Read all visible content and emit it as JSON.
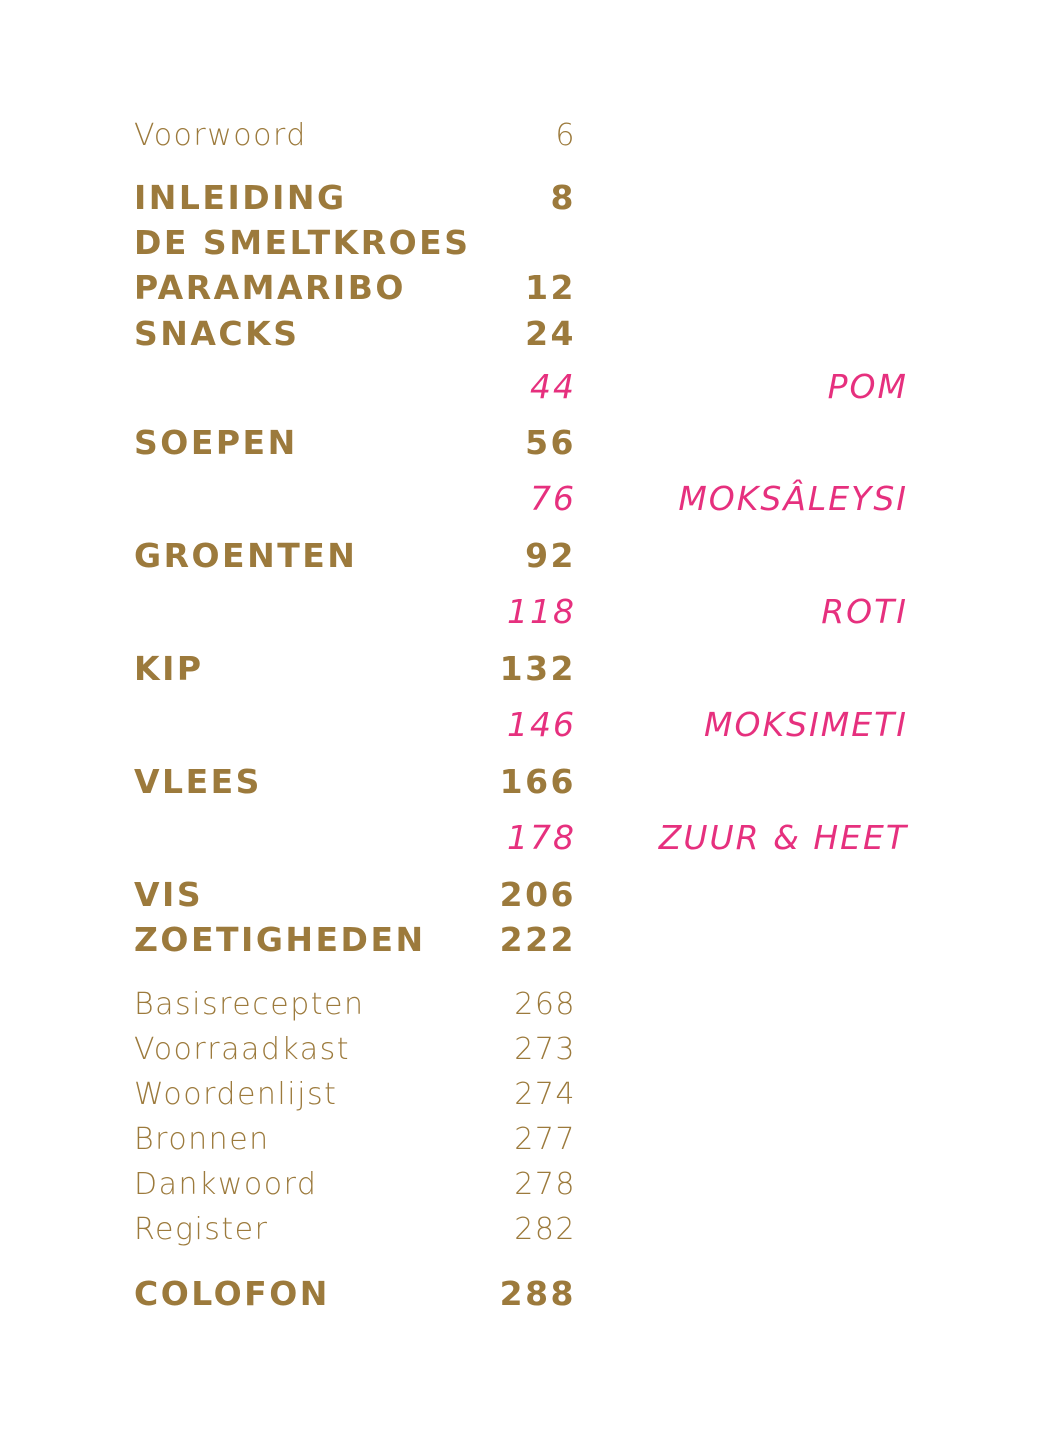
{
  "colors": {
    "gold": "#9c7a3c",
    "pink": "#e6307e"
  },
  "toc": {
    "voorwoord": {
      "label": "Voorwoord",
      "page": "6"
    },
    "inleiding": {
      "label": "INLEIDING",
      "page": "8"
    },
    "smeltkroes": {
      "label": "DE SMELTKROES"
    },
    "paramaribo": {
      "label": "PARAMARIBO",
      "page": "12"
    },
    "snacks": {
      "label": "SNACKS",
      "page": "24"
    },
    "pom": {
      "label": "POM",
      "page": "44"
    },
    "soepen": {
      "label": "SOEPEN",
      "page": "56"
    },
    "moksaleysi": {
      "label": "MOKSÂLEYSI",
      "page": "76"
    },
    "groenten": {
      "label": "GROENTEN",
      "page": "92"
    },
    "roti": {
      "label": "ROTI",
      "page": "118"
    },
    "kip": {
      "label": "KIP",
      "page": "132"
    },
    "moksimeti": {
      "label": "MOKSIMETI",
      "page": "146"
    },
    "vlees": {
      "label": "VLEES",
      "page": "166"
    },
    "zuur": {
      "label": "ZUUR & HEET",
      "page": "178"
    },
    "vis": {
      "label": "VIS",
      "page": "206"
    },
    "zoetigheden": {
      "label": "ZOETIGHEDEN",
      "page": "222"
    },
    "basisrecepten": {
      "label": "Basisrecepten",
      "page": "268"
    },
    "voorraadkast": {
      "label": "Voorraadkast",
      "page": "273"
    },
    "woordenlijst": {
      "label": "Woordenlijst",
      "page": "274"
    },
    "bronnen": {
      "label": "Bronnen",
      "page": "277"
    },
    "dankwoord": {
      "label": "Dankwoord",
      "page": "278"
    },
    "register": {
      "label": "Register",
      "page": "282"
    },
    "colofon": {
      "label": "COLOFON",
      "page": "288"
    }
  }
}
